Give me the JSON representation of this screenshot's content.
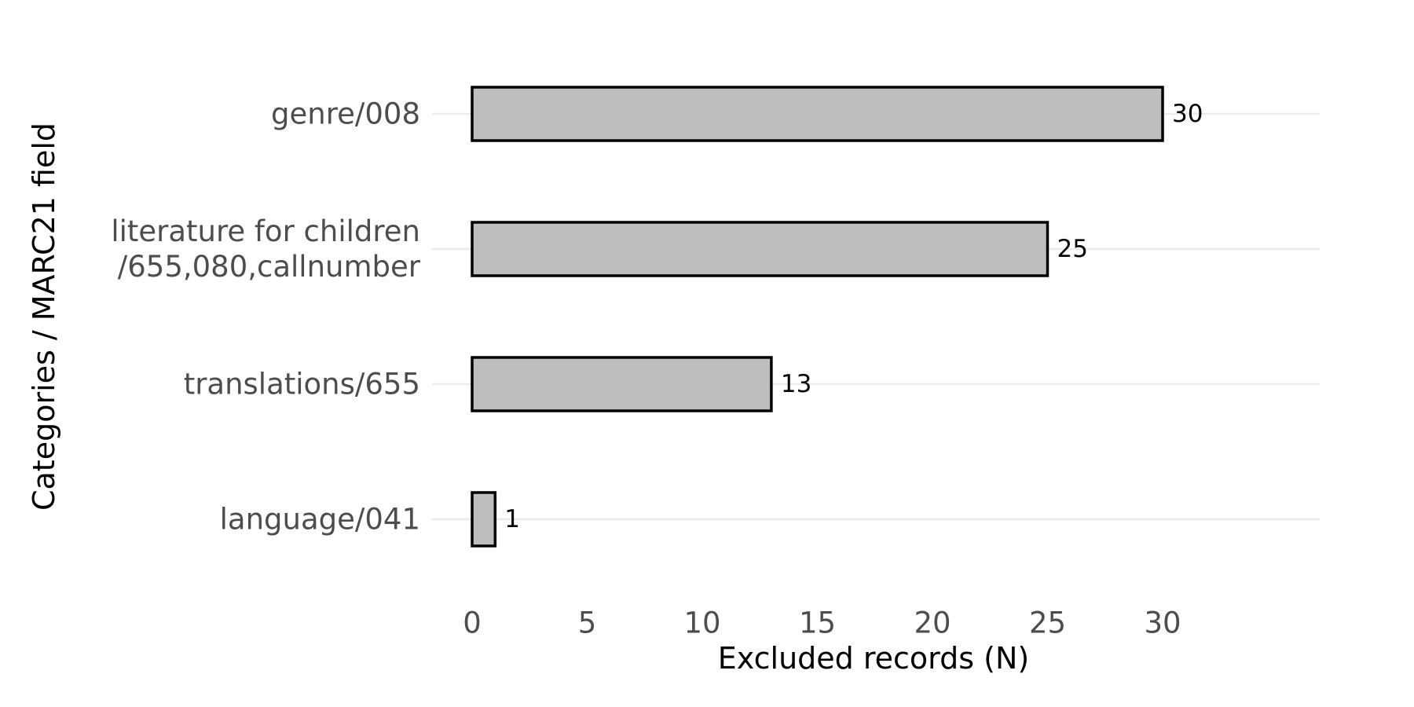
{
  "chart_data": {
    "type": "bar",
    "orientation": "horizontal",
    "categories": [
      [
        "genre/008"
      ],
      [
        "literature for children",
        "/655,080,callnumber"
      ],
      [
        "translations/655"
      ],
      [
        "language/041"
      ]
    ],
    "values": [
      30,
      25,
      13,
      1
    ],
    "value_labels": [
      "30",
      "25",
      "13",
      "1"
    ],
    "xlabel": "Excluded records (N)",
    "ylabel": "Categories / MARC21 field",
    "xticks": [
      0,
      5,
      10,
      15,
      20,
      25,
      30
    ],
    "xtick_labels": [
      "0",
      "5",
      "10",
      "15",
      "20",
      "25",
      "30"
    ],
    "xlim": [
      0,
      36.7
    ],
    "grid": "horizontal-major",
    "legend": "none",
    "colors": {
      "bar_fill": "#bebebe",
      "bar_outline": "#000000",
      "grid": "#ebebeb",
      "tick_text": "#4d4d4d"
    }
  }
}
